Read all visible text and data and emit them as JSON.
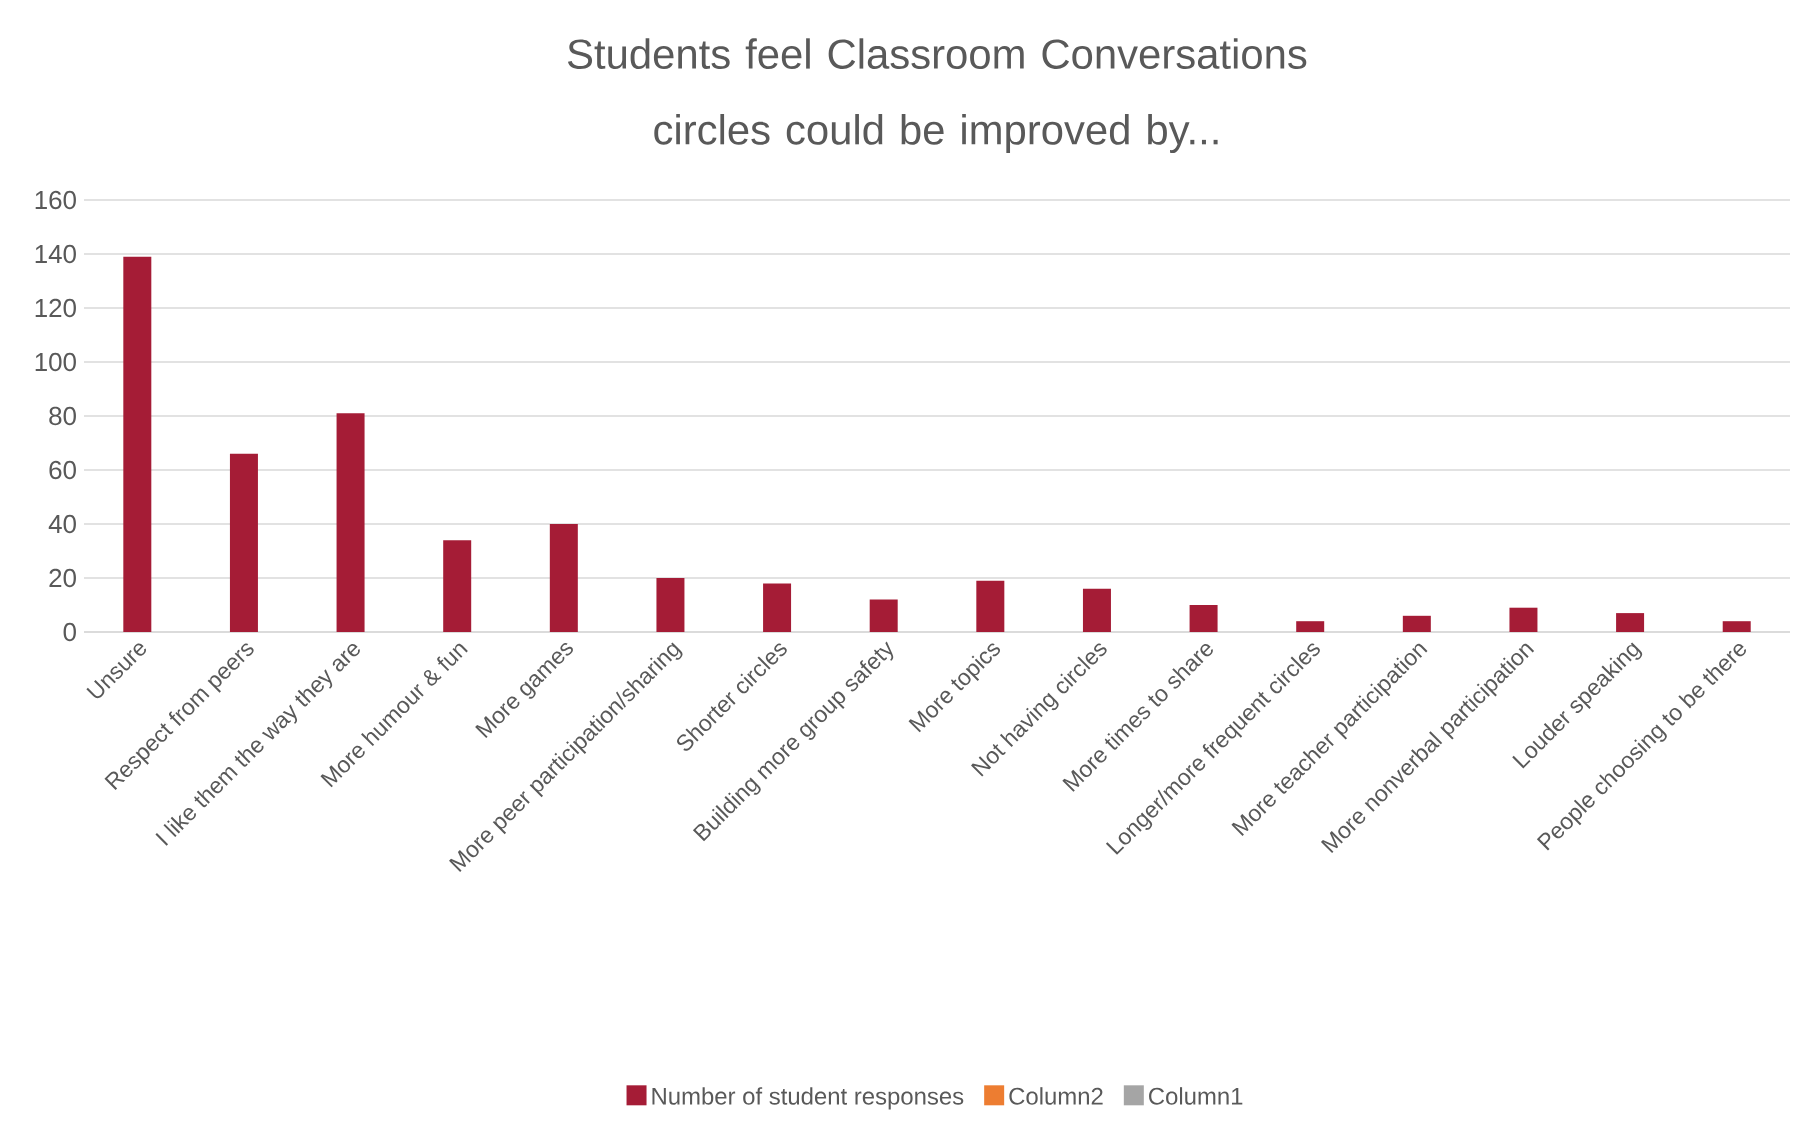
{
  "chart_data": {
    "type": "bar",
    "title": "Students feel Classroom Conversations circles could be improved by...",
    "categories": [
      "Unsure",
      "Respect from peers",
      "I like them the way they are",
      "More humour & fun",
      "More games",
      "More peer participation/sharing",
      "Shorter circles",
      "Building more group safety",
      "More topics",
      "Not having circles",
      "More times to share",
      "Longer/more frequent circles",
      "More teacher participation",
      "More nonverbal participation",
      "Louder speaking",
      "People choosing to be there"
    ],
    "series": [
      {
        "name": "Number of student responses",
        "color": "#a51c36",
        "values": [
          139,
          66,
          81,
          34,
          40,
          20,
          18,
          12,
          19,
          16,
          10,
          4,
          6,
          9,
          7,
          4
        ]
      },
      {
        "name": "Column2",
        "color": "#ed7d31",
        "values": [
          null,
          null,
          null,
          null,
          null,
          null,
          null,
          null,
          null,
          null,
          null,
          null,
          null,
          null,
          null,
          null
        ]
      },
      {
        "name": "Column1",
        "color": "#a5a5a5",
        "values": [
          null,
          null,
          null,
          null,
          null,
          null,
          null,
          null,
          null,
          null,
          null,
          null,
          null,
          null,
          null,
          null
        ]
      }
    ],
    "ylim": [
      0,
      160
    ],
    "yticks": [
      0,
      20,
      40,
      60,
      80,
      100,
      120,
      140,
      160
    ],
    "grid": "y",
    "legend": "bottom"
  }
}
